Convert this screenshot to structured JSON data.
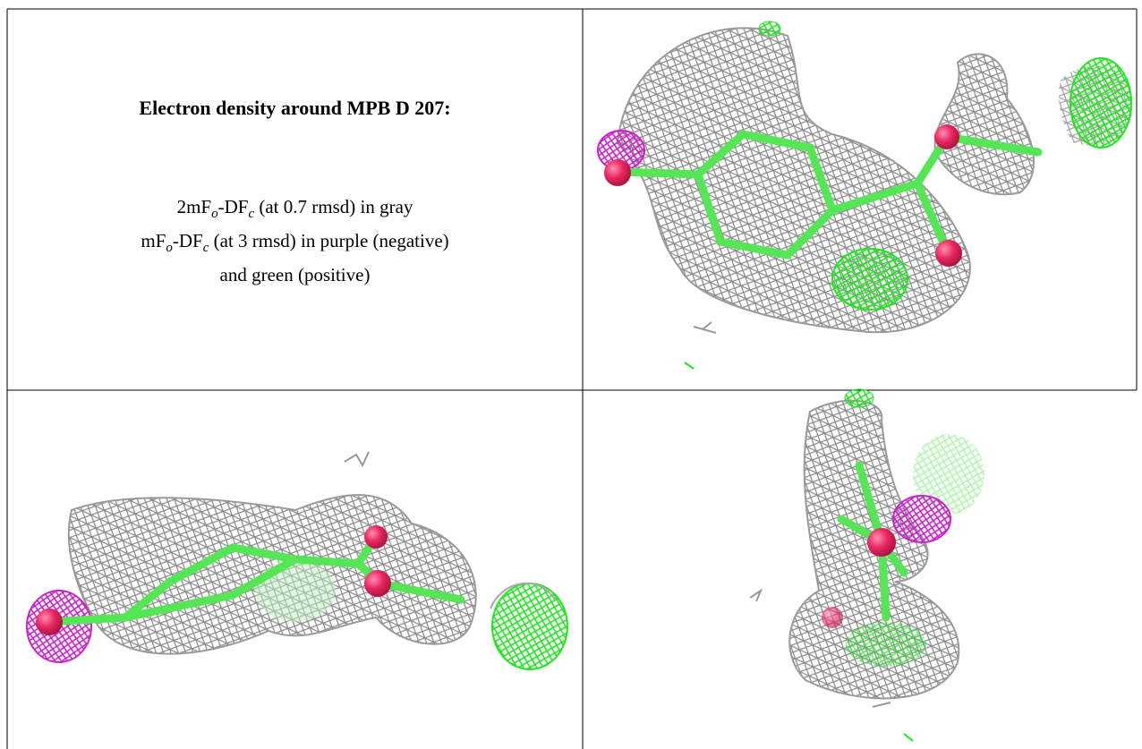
{
  "title": "Electron density around MPB D 207:",
  "description": [
    {
      "parts": [
        "2mF",
        "o",
        "-DF",
        "c",
        " (at 0.7 rmsd) in gray"
      ]
    },
    {
      "parts": [
        "mF",
        "o",
        "-DF",
        "c",
        " (at 3 rmsd) in purple (negative)"
      ]
    },
    {
      "parts": [
        "and green (positive)"
      ]
    }
  ]
}
